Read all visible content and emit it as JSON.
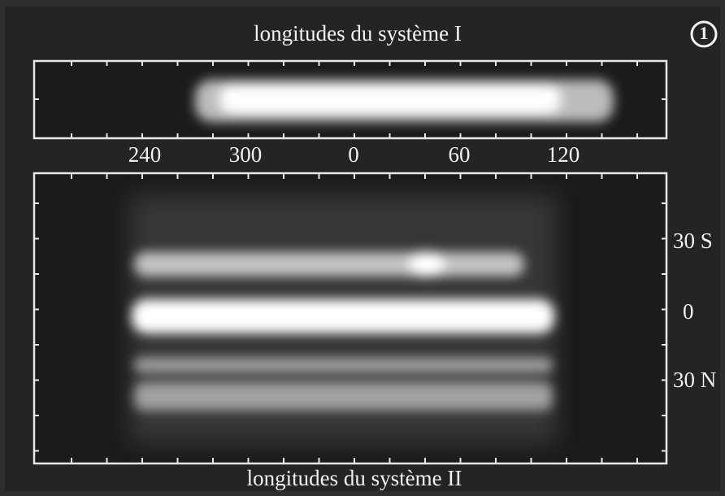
{
  "figure_number": "1",
  "top_panel": {
    "title": "longitudes du système I",
    "ticks": [
      "240",
      "300",
      "0",
      "60",
      "120"
    ]
  },
  "bottom_panel": {
    "title": "longitudes du système II",
    "latitude_labels": [
      "30 S",
      "0",
      "30 N"
    ]
  }
}
